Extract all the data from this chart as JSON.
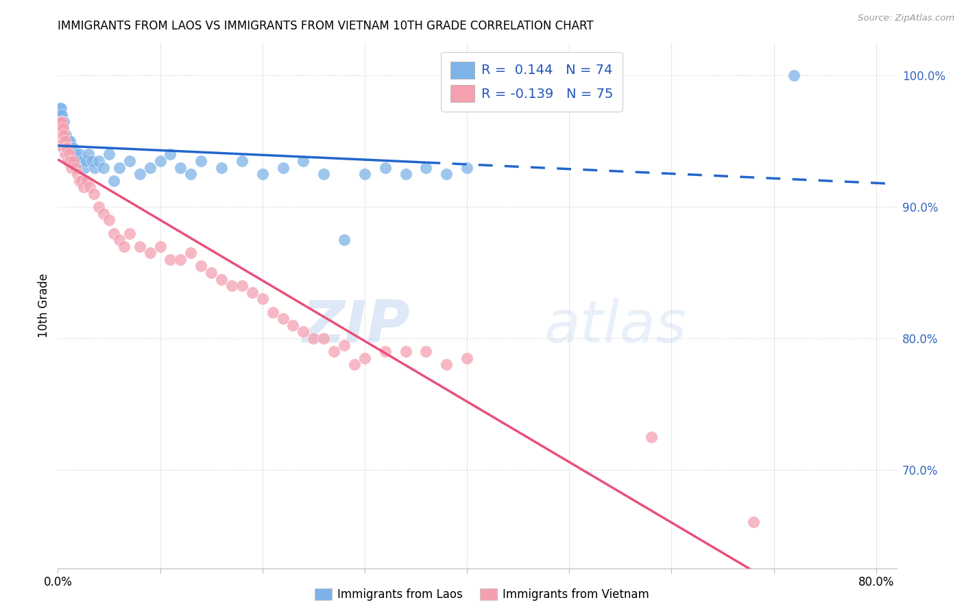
{
  "title": "IMMIGRANTS FROM LAOS VS IMMIGRANTS FROM VIETNAM 10TH GRADE CORRELATION CHART",
  "source": "Source: ZipAtlas.com",
  "ylabel": "10th Grade",
  "right_yticks": [
    "70.0%",
    "80.0%",
    "90.0%",
    "100.0%"
  ],
  "right_ytick_vals": [
    0.7,
    0.8,
    0.9,
    1.0
  ],
  "laos_color": "#7eb3e8",
  "vietnam_color": "#f4a0b0",
  "laos_line_color": "#2266cc",
  "vietnam_line_color": "#e8507a",
  "laos_R": 0.144,
  "laos_N": 74,
  "vietnam_R": -0.139,
  "vietnam_N": 75,
  "watermark_zip": "ZIP",
  "watermark_atlas": "atlas",
  "xlim": [
    0.0,
    0.82
  ],
  "ylim": [
    0.625,
    1.025
  ],
  "laos_x": [
    0.001,
    0.001,
    0.002,
    0.002,
    0.002,
    0.002,
    0.003,
    0.003,
    0.003,
    0.003,
    0.003,
    0.003,
    0.004,
    0.004,
    0.004,
    0.004,
    0.005,
    0.005,
    0.005,
    0.005,
    0.005,
    0.006,
    0.006,
    0.006,
    0.006,
    0.007,
    0.007,
    0.008,
    0.008,
    0.009,
    0.009,
    0.01,
    0.01,
    0.011,
    0.012,
    0.013,
    0.014,
    0.015,
    0.017,
    0.019,
    0.021,
    0.024,
    0.026,
    0.028,
    0.03,
    0.033,
    0.036,
    0.04,
    0.045,
    0.05,
    0.055,
    0.06,
    0.07,
    0.08,
    0.09,
    0.1,
    0.11,
    0.12,
    0.13,
    0.14,
    0.16,
    0.18,
    0.2,
    0.22,
    0.24,
    0.26,
    0.28,
    0.3,
    0.32,
    0.34,
    0.36,
    0.38,
    0.4,
    0.72
  ],
  "laos_y": [
    0.96,
    0.97,
    0.975,
    0.96,
    0.965,
    0.97,
    0.95,
    0.955,
    0.96,
    0.965,
    0.97,
    0.975,
    0.95,
    0.955,
    0.96,
    0.97,
    0.945,
    0.95,
    0.955,
    0.96,
    0.965,
    0.945,
    0.95,
    0.955,
    0.965,
    0.94,
    0.95,
    0.945,
    0.955,
    0.94,
    0.95,
    0.94,
    0.95,
    0.945,
    0.95,
    0.945,
    0.94,
    0.945,
    0.94,
    0.935,
    0.94,
    0.935,
    0.93,
    0.935,
    0.94,
    0.935,
    0.93,
    0.935,
    0.93,
    0.94,
    0.92,
    0.93,
    0.935,
    0.925,
    0.93,
    0.935,
    0.94,
    0.93,
    0.925,
    0.935,
    0.93,
    0.935,
    0.925,
    0.93,
    0.935,
    0.925,
    0.875,
    0.925,
    0.93,
    0.925,
    0.93,
    0.925,
    0.93,
    1.0
  ],
  "vietnam_x": [
    0.001,
    0.001,
    0.002,
    0.002,
    0.002,
    0.003,
    0.003,
    0.003,
    0.003,
    0.004,
    0.004,
    0.004,
    0.004,
    0.005,
    0.005,
    0.005,
    0.006,
    0.006,
    0.006,
    0.007,
    0.007,
    0.008,
    0.008,
    0.009,
    0.009,
    0.01,
    0.011,
    0.012,
    0.013,
    0.015,
    0.017,
    0.019,
    0.021,
    0.023,
    0.025,
    0.028,
    0.031,
    0.035,
    0.04,
    0.045,
    0.05,
    0.055,
    0.06,
    0.065,
    0.07,
    0.08,
    0.09,
    0.1,
    0.11,
    0.12,
    0.13,
    0.14,
    0.15,
    0.16,
    0.17,
    0.18,
    0.19,
    0.2,
    0.21,
    0.22,
    0.23,
    0.24,
    0.25,
    0.26,
    0.27,
    0.28,
    0.29,
    0.3,
    0.32,
    0.34,
    0.36,
    0.38,
    0.4,
    0.58,
    0.68
  ],
  "vietnam_y": [
    0.95,
    0.96,
    0.955,
    0.96,
    0.965,
    0.95,
    0.955,
    0.96,
    0.965,
    0.95,
    0.955,
    0.96,
    0.965,
    0.945,
    0.95,
    0.96,
    0.945,
    0.95,
    0.955,
    0.94,
    0.95,
    0.94,
    0.945,
    0.94,
    0.945,
    0.935,
    0.94,
    0.935,
    0.93,
    0.935,
    0.93,
    0.925,
    0.92,
    0.92,
    0.915,
    0.92,
    0.915,
    0.91,
    0.9,
    0.895,
    0.89,
    0.88,
    0.875,
    0.87,
    0.88,
    0.87,
    0.865,
    0.87,
    0.86,
    0.86,
    0.865,
    0.855,
    0.85,
    0.845,
    0.84,
    0.84,
    0.835,
    0.83,
    0.82,
    0.815,
    0.81,
    0.805,
    0.8,
    0.8,
    0.79,
    0.795,
    0.78,
    0.785,
    0.79,
    0.79,
    0.79,
    0.78,
    0.785,
    0.725,
    0.66
  ]
}
